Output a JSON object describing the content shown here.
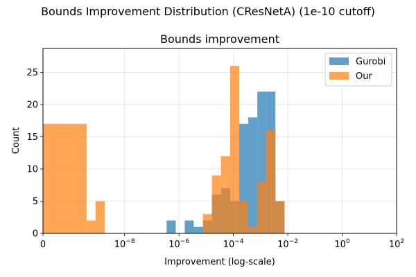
{
  "figure": {
    "suptitle": "Bounds Improvement Distribution (CResNetA) (1e-10 cutoff)"
  },
  "chart_data": {
    "type": "bar",
    "title": "Bounds improvement",
    "xlabel": "Improvement (log-scale)",
    "ylabel": "Count",
    "xscale": "symlog",
    "xlim": [
      0,
      100
    ],
    "ylim": [
      0,
      28.7
    ],
    "xticks": [
      {
        "base": "0",
        "exp": ""
      },
      {
        "base": "10",
        "exp": "−8"
      },
      {
        "base": "10",
        "exp": "−6"
      },
      {
        "base": "10",
        "exp": "−4"
      },
      {
        "base": "10",
        "exp": "−2"
      },
      {
        "base": "10",
        "exp": "0"
      },
      {
        "base": "10",
        "exp": "2"
      }
    ],
    "yticks": [
      "0",
      "5",
      "10",
      "15",
      "20",
      "25"
    ],
    "grid": true,
    "legend_position": "top-right",
    "colors": {
      "gurobi": "#1f77b4",
      "our": "#ff7f0e",
      "overlap": "#bf7e3f"
    },
    "series": [
      {
        "name": "Gurobi",
        "bins": [
          {
            "lo": 3.5e-07,
            "hi": 7.6e-07,
            "count": 2
          },
          {
            "lo": 1.63e-06,
            "hi": 3.5e-06,
            "count": 2
          },
          {
            "lo": 3.5e-06,
            "hi": 7.6e-06,
            "count": 1
          },
          {
            "lo": 7.6e-06,
            "hi": 1.63e-05,
            "count": 2
          },
          {
            "lo": 1.63e-05,
            "hi": 3.5e-05,
            "count": 6
          },
          {
            "lo": 3.5e-05,
            "hi": 7.6e-05,
            "count": 7
          },
          {
            "lo": 7.6e-05,
            "hi": 0.000163,
            "count": 5
          },
          {
            "lo": 0.000163,
            "hi": 0.00035,
            "count": 17
          },
          {
            "lo": 0.00035,
            "hi": 0.00076,
            "count": 18
          },
          {
            "lo": 0.00076,
            "hi": 0.00163,
            "count": 22
          },
          {
            "lo": 0.00163,
            "hi": 0.0035,
            "count": 22
          },
          {
            "lo": 0.0035,
            "hi": 0.0076,
            "count": 5
          }
        ]
      },
      {
        "name": "Our",
        "bins": [
          {
            "lo": 0,
            "hi": 4e-10,
            "count": 17
          },
          {
            "lo": 4e-10,
            "hi": 8.6e-10,
            "count": 2
          },
          {
            "lo": 8.6e-10,
            "hi": 1.85e-09,
            "count": 5
          },
          {
            "lo": 7.6e-06,
            "hi": 1.63e-05,
            "count": 3
          },
          {
            "lo": 1.63e-05,
            "hi": 3.5e-05,
            "count": 9
          },
          {
            "lo": 3.5e-05,
            "hi": 7.6e-05,
            "count": 12
          },
          {
            "lo": 7.6e-05,
            "hi": 0.000163,
            "count": 26
          },
          {
            "lo": 0.000163,
            "hi": 0.00035,
            "count": 5
          },
          {
            "lo": 0.00035,
            "hi": 0.00076,
            "count": 1
          },
          {
            "lo": 0.00076,
            "hi": 0.00163,
            "count": 8
          },
          {
            "lo": 0.00163,
            "hi": 0.0035,
            "count": 16
          },
          {
            "lo": 0.0035,
            "hi": 0.0076,
            "count": 5
          }
        ]
      }
    ]
  }
}
